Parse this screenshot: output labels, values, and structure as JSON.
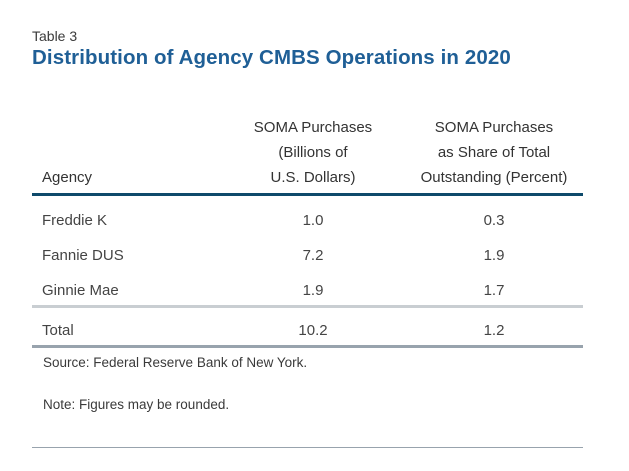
{
  "label": "Table 3",
  "title": "Distribution of Agency CMBS Operations in 2020",
  "colors": {
    "title": "#1f5f96",
    "header_rule": "#0e4a6b",
    "subtotal_rule": "#c9ced2",
    "total_rule": "#98a3ad"
  },
  "table": {
    "headers": {
      "agency": "Agency",
      "purchases": [
        "SOMA Purchases",
        "(Billions of",
        "U.S. Dollars)"
      ],
      "share": [
        "SOMA Purchases",
        "as Share of Total",
        "Outstanding (Percent)"
      ]
    },
    "rows": [
      {
        "agency": "Freddie K",
        "purchases": "1.0",
        "share": "0.3"
      },
      {
        "agency": "Fannie DUS",
        "purchases": "7.2",
        "share": "1.9"
      },
      {
        "agency": "Ginnie Mae",
        "purchases": "1.9",
        "share": "1.7"
      }
    ],
    "total": {
      "agency": "Total",
      "purchases": "10.2",
      "share": "1.2"
    }
  },
  "source": "Source: Federal Reserve Bank of New York.",
  "note": "Note: Figures may be rounded."
}
